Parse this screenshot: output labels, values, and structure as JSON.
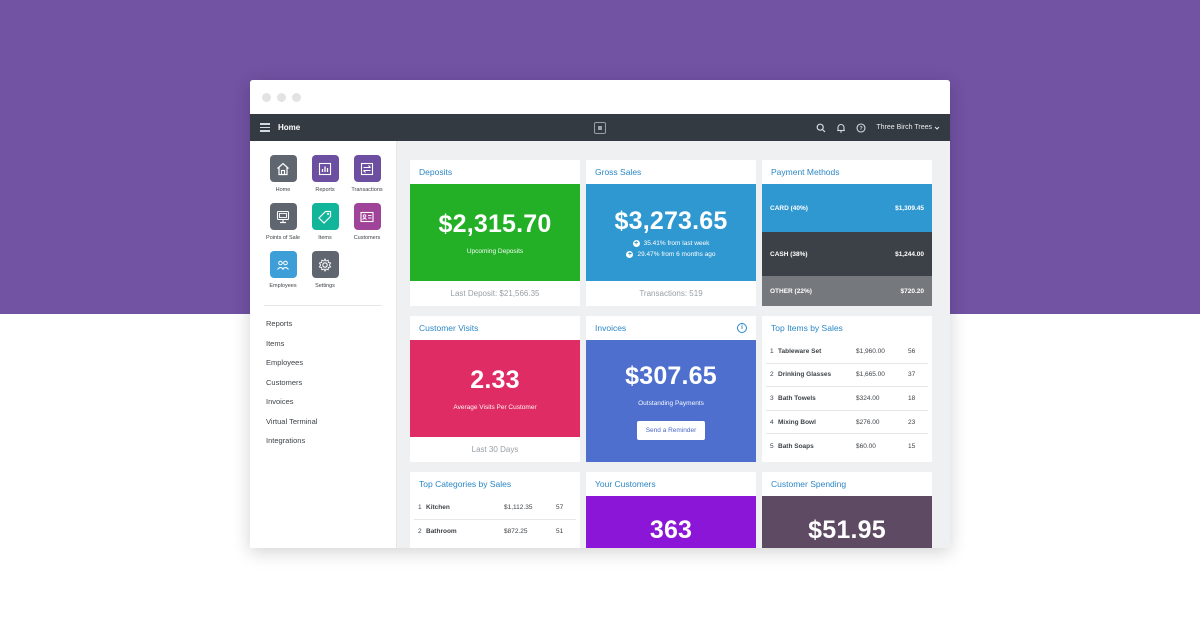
{
  "topbar": {
    "menu_title": "Home",
    "merchant_name": "Three Birch Trees"
  },
  "apps": [
    {
      "label": "Home",
      "icon": "home-icon",
      "color": "#5f6670"
    },
    {
      "label": "Reports",
      "icon": "bar-chart-icon",
      "color": "#6c4fa0"
    },
    {
      "label": "Transactions",
      "icon": "transactions-icon",
      "color": "#6c4fa0"
    },
    {
      "label": "Points of Sale",
      "icon": "register-icon",
      "color": "#5f6670"
    },
    {
      "label": "Items",
      "icon": "tag-icon",
      "color": "#11b59a"
    },
    {
      "label": "Customers",
      "icon": "contact-card-icon",
      "color": "#a0449a"
    },
    {
      "label": "Employees",
      "icon": "people-icon",
      "color": "#3e9fd8"
    },
    {
      "label": "Settings",
      "icon": "gear-icon",
      "color": "#5f6670"
    }
  ],
  "side_nav": [
    "Reports",
    "Items",
    "Employees",
    "Customers",
    "Invoices",
    "Virtual Terminal",
    "Integrations"
  ],
  "deposits": {
    "title": "Deposits",
    "amount": "$2,315.70",
    "sub": "Upcoming Deposits",
    "footer": "Last Deposit: $21,566.35",
    "color": "#23b027"
  },
  "gross_sales": {
    "title": "Gross Sales",
    "amount": "$3,273.65",
    "change_1": "35.41% from last week",
    "change_2": "29.47% from 6 months ago",
    "footer": "Transactions: 519",
    "color": "#2f98d0"
  },
  "payment_methods": {
    "title": "Payment Methods",
    "rows": [
      {
        "label": "CARD (40%)",
        "value": "$1,309.45",
        "color": "#2f98d0"
      },
      {
        "label": "CASH (38%)",
        "value": "$1,244.00",
        "color": "#3c4147"
      },
      {
        "label": "OTHER (22%)",
        "value": "$720.20",
        "color": "#75797d"
      }
    ]
  },
  "customer_visits": {
    "title": "Customer Visits",
    "amount": "2.33",
    "sub": "Average Visits Per Customer",
    "footer": "Last 30 Days",
    "color": "#e02c64"
  },
  "invoices": {
    "title": "Invoices",
    "amount": "$307.65",
    "sub": "Outstanding Payments",
    "button": "Send a Reminder",
    "color": "#4e6fce"
  },
  "top_items": {
    "title": "Top Items by Sales",
    "rows": [
      {
        "rank": "1",
        "name": "Tableware Set",
        "value": "$1,960.00",
        "count": "56"
      },
      {
        "rank": "2",
        "name": "Drinking Glasses",
        "value": "$1,665.00",
        "count": "37"
      },
      {
        "rank": "3",
        "name": "Bath Towels",
        "value": "$324.00",
        "count": "18"
      },
      {
        "rank": "4",
        "name": "Mixing Bowl",
        "value": "$276.00",
        "count": "23"
      },
      {
        "rank": "5",
        "name": "Bath Soaps",
        "value": "$60.00",
        "count": "15"
      }
    ]
  },
  "top_categories": {
    "title": "Top Categories by Sales",
    "rows": [
      {
        "rank": "1",
        "name": "Kitchen",
        "value": "$1,112.35",
        "count": "57"
      },
      {
        "rank": "2",
        "name": "Bathroom",
        "value": "$872.25",
        "count": "51"
      }
    ]
  },
  "your_customers": {
    "title": "Your Customers",
    "amount": "363",
    "color": "#8c16d8"
  },
  "customer_spending": {
    "title": "Customer Spending",
    "amount": "$51.95",
    "color": "#5e4a63"
  }
}
